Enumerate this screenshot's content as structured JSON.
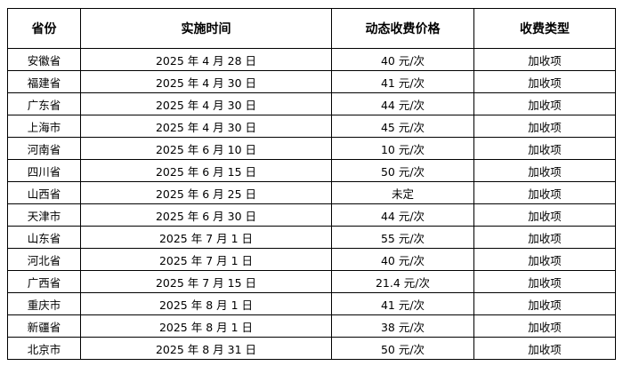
{
  "table": {
    "headers": [
      "省份",
      "实施时间",
      "动态收费价格",
      "收费类型"
    ],
    "rows": [
      [
        "安徽省",
        "2025 年 4 月 28 日",
        "40 元/次",
        "加收项"
      ],
      [
        "福建省",
        "2025 年 4 月 30 日",
        "41 元/次",
        "加收项"
      ],
      [
        "广东省",
        "2025 年 4 月 30 日",
        "44 元/次",
        "加收项"
      ],
      [
        "上海市",
        "2025 年 4 月 30 日",
        "45 元/次",
        "加收项"
      ],
      [
        "河南省",
        "2025 年 6 月 10 日",
        "10 元/次",
        "加收项"
      ],
      [
        "四川省",
        "2025 年 6 月 15 日",
        "50 元/次",
        "加收项"
      ],
      [
        "山西省",
        "2025 年 6 月 25 日",
        "未定",
        "加收项"
      ],
      [
        "天津市",
        "2025 年 6 月 30 日",
        "44 元/次",
        "加收项"
      ],
      [
        "山东省",
        "2025 年 7 月 1 日",
        "55 元/次",
        "加收项"
      ],
      [
        "河北省",
        "2025 年 7 月 1 日",
        "40 元/次",
        "加收项"
      ],
      [
        "广西省",
        "2025 年 7 月 15 日",
        "21.4 元/次",
        "加收项"
      ],
      [
        "重庆市",
        "2025 年 8 月 1 日",
        "41 元/次",
        "加收项"
      ],
      [
        "新疆省",
        "2025 年 8 月 1 日",
        "38 元/次",
        "加收项"
      ],
      [
        "北京市",
        "2025 年 8 月 31 日",
        "50 元/次",
        "加收项"
      ]
    ]
  }
}
